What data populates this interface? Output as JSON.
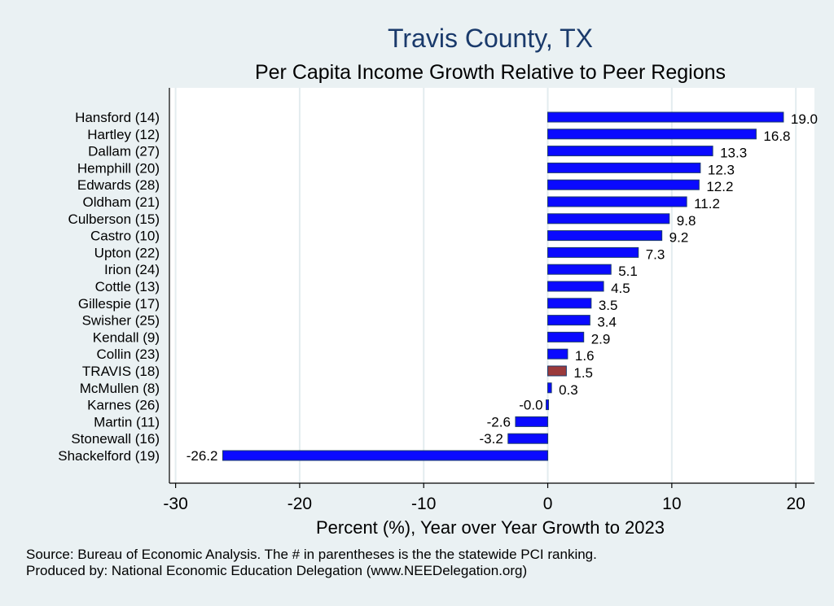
{
  "chart_data": {
    "type": "bar",
    "orientation": "horizontal",
    "title": "Travis County, TX",
    "subtitle": "Per Capita Income Growth Relative to Peer Regions",
    "xlabel": "Percent (%), Year over Year Growth to 2023",
    "ylabel": "",
    "xlim": [
      -30.5,
      21.5
    ],
    "xticks": [
      -30,
      -20,
      -10,
      0,
      10,
      20
    ],
    "xtick_labels": [
      "-30",
      "-20",
      "-10",
      "0",
      "10",
      "20"
    ],
    "grid": "vertical",
    "categories": [
      "Hansford (14)",
      "Hartley (12)",
      "Dallam (27)",
      "Hemphill (20)",
      "Edwards (28)",
      "Oldham (21)",
      "Culberson (15)",
      "Castro (10)",
      "Upton (22)",
      "Irion (24)",
      "Cottle (13)",
      "Gillespie (17)",
      "Swisher (25)",
      "Kendall  (9)",
      "Collin (23)",
      "TRAVIS (18)",
      "McMullen  (8)",
      "Karnes (26)",
      "Martin (11)",
      "Stonewall (16)",
      "Shackelford (19)"
    ],
    "values": [
      19.0,
      16.8,
      13.3,
      12.3,
      12.2,
      11.2,
      9.8,
      9.2,
      7.3,
      5.1,
      4.5,
      3.5,
      3.4,
      2.9,
      1.6,
      1.5,
      0.3,
      -0.0,
      -2.6,
      -3.2,
      -26.2
    ],
    "value_labels": [
      "19.0",
      "16.8",
      "13.3",
      "12.3",
      "12.2",
      "11.2",
      "9.8",
      "9.2",
      "7.3",
      "5.1",
      "4.5",
      "3.5",
      "3.4",
      "2.9",
      "1.6",
      "1.5",
      "0.3",
      "-0.0",
      "-2.6",
      "-3.2",
      "-26.2"
    ],
    "highlight": "TRAVIS (18)",
    "colors": {
      "bar": "#0a0aff",
      "highlight": "#9b3a3c",
      "bar_edge": "#1a3a6b",
      "title": "#1a3a6b",
      "background": "#eaf1f3",
      "plot_background": "#ffffff",
      "grid": "#e3ecef"
    }
  },
  "footer": {
    "source": "Source: Bureau of Economic Analysis. The # in parentheses is the the statewide PCI ranking.",
    "producer": "Produced by: National Economic Education Delegation (www.NEEDelegation.org)"
  }
}
